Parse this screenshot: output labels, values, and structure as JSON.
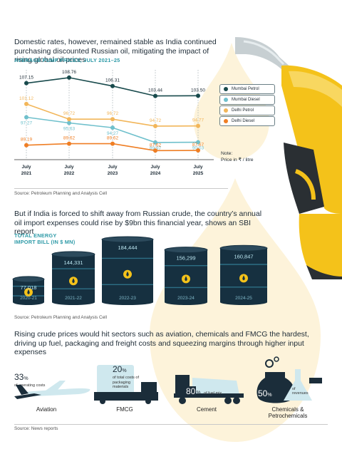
{
  "headline1": "Domestic rates, however, remained stable as India continued purchasing discounted Russian oil, mitigating the impact of rising global oil prices",
  "kicker1": "AVERAGE PUMP PRICES, JULY 2021–25",
  "note_title": "Note:",
  "note_text": "Price in ₹ / litre",
  "source1": "Source: Petroleum Planning and Analysis Cell",
  "headline2": "But if India is forced to shift away from Russian crude, the country’s annual oil import expenses could rise by $9bn this financial year, shows an SBI report",
  "kicker2": "TOTAL ENERGY IMPORT BILL (IN $ MN)",
  "source2": "Source: Petroleum Planning and Analysis Cell",
  "headline3": "Rising crude prices would hit sectors such as aviation, chemicals and FMCG the hardest, driving up fuel, packaging and freight costs and squeezing margins through higher input expenses",
  "source3": "Source:  News reports",
  "colors": {
    "mumbai_petrol": "#184a4c",
    "mumbai_diesel": "#6fc0cc",
    "delhi_petrol": "#f2b65a",
    "delhi_diesel": "#ef7e24",
    "barrel": "#163040",
    "accent_yellow": "#f4c21a"
  },
  "chart_data": [
    {
      "type": "line",
      "title": "AVERAGE PUMP PRICES, JULY 2021–25",
      "x": [
        "July 2021",
        "July 2022",
        "July 2023",
        "July 2024",
        "July 2025"
      ],
      "x_labels": [
        [
          "July",
          "2021"
        ],
        [
          "July",
          "2022"
        ],
        [
          "July",
          "2023"
        ],
        [
          "July",
          "2024"
        ],
        [
          "July",
          "2025"
        ]
      ],
      "ylim": [
        85,
        111
      ],
      "series": [
        {
          "name": "Mumbai Petrol",
          "values": [
            107.15,
            108.76,
            106.31,
            103.44,
            103.5
          ],
          "labels": [
            "107.15",
            "108.76",
            "106.31",
            "103.44",
            "103.50"
          ]
        },
        {
          "name": "Mumbai Diesel",
          "values": [
            97.27,
            95.63,
            94.27,
            89.97,
            90.03
          ],
          "labels": [
            "97.27",
            "95.63",
            "94.27",
            "89.97",
            "90.03"
          ]
        },
        {
          "name": "Delhi Petrol",
          "values": [
            101.12,
            96.72,
            96.72,
            94.72,
            94.77
          ],
          "labels": [
            "101.12",
            "96.72",
            "96.72",
            "94.72",
            "94.77"
          ]
        },
        {
          "name": "Delhi Diesel",
          "values": [
            89.19,
            89.62,
            89.62,
            87.62,
            87.67
          ],
          "labels": [
            "89.19",
            "89.62",
            "89.62",
            "87.62",
            "87.67"
          ]
        }
      ],
      "legend": "right"
    },
    {
      "type": "bar",
      "title": "TOTAL ENERGY IMPORT BILL (IN $ MN)",
      "categories": [
        "2020-21",
        "2021-22",
        "2022-23",
        "2023-24",
        "2024-25"
      ],
      "values": [
        77018,
        144331,
        184444,
        156299,
        160847
      ],
      "labels": [
        "77,018",
        "144,331",
        "184,444",
        "156,299",
        "160,847"
      ]
    }
  ],
  "sectors": [
    {
      "name": "Aviation",
      "pct": "33",
      "pct_sign": "%",
      "desc": "of operating costs"
    },
    {
      "name": "FMCG",
      "pct": "20",
      "pct_sign": "%",
      "desc": "of total costs of packaging materials"
    },
    {
      "name": "Cement",
      "pct": "80",
      "pct_sign": "%",
      "desc": "of fuel mix"
    },
    {
      "name": "Chemicals & Petrochemicals",
      "pct": "50",
      "pct_sign": "%",
      "desc": "of revenues"
    }
  ]
}
